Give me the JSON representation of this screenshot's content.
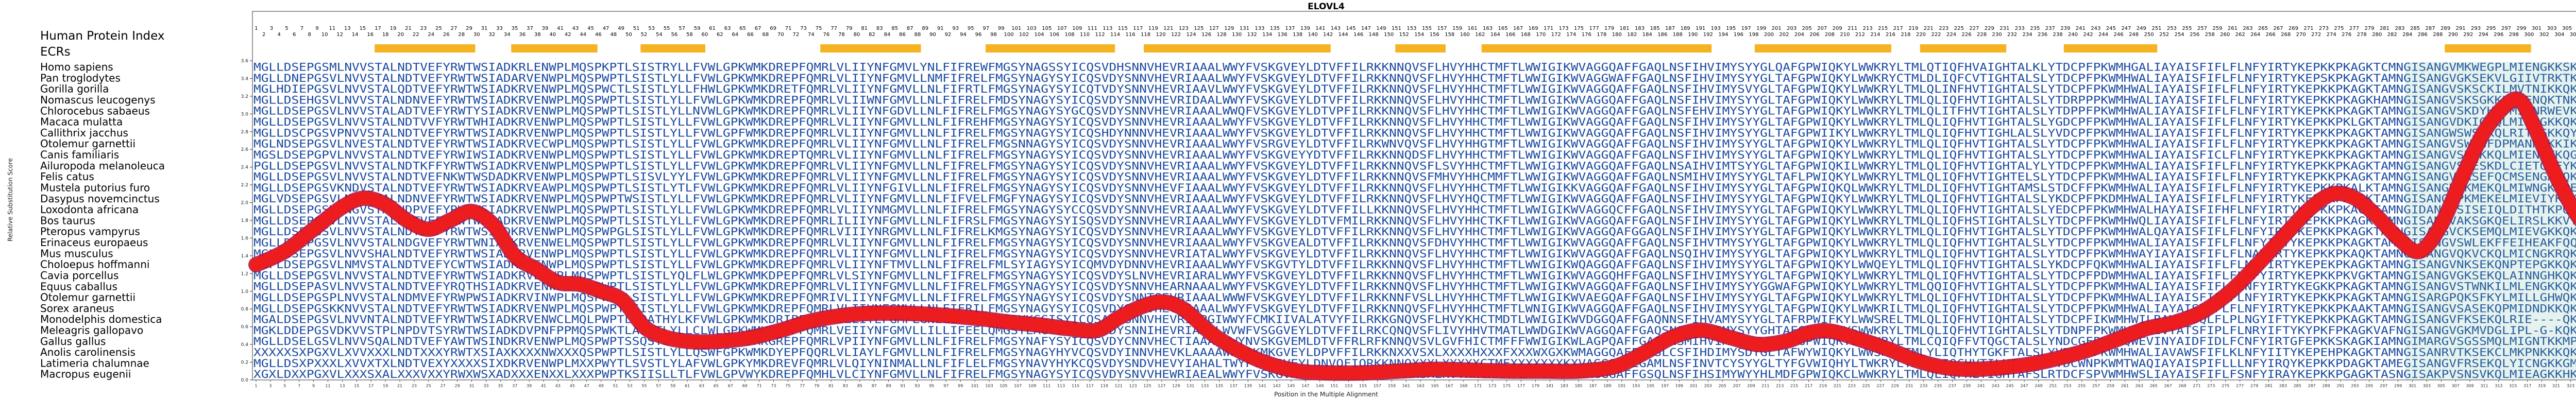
{
  "chart_data": {
    "type": "line",
    "title": "ELOVL4",
    "header_left": "Human Protein Index",
    "ecrs_label": "ECRs",
    "xlabel": "Position in the Multiple Alignment",
    "ylabel": "Relative Substitution Score",
    "ylim": [
      0,
      3.6
    ],
    "yticks": [
      0,
      0.2,
      0.4,
      0.6,
      0.8,
      1.0,
      1.2,
      1.4,
      1.6,
      1.8,
      2.0,
      2.2,
      2.4,
      2.6,
      2.8,
      3.0,
      3.2,
      3.4,
      3.6
    ],
    "human_index_max": 313,
    "alignment_length": 331,
    "species": [
      "Homo sapiens",
      "Pan troglodytes",
      "Gorilla gorilla",
      "Nomascus leucogenys",
      "Chlorocebus sabaeus",
      "Macaca mulatta",
      "Callithrix jacchus",
      "Otolemur garnettii",
      "Canis familiaris",
      "Ailuropoda melanoleuca",
      "Felis catus",
      "Mustela putorius furo",
      "Dasypus novemcinctus",
      "Loxodonta africana",
      "Bos taurus",
      "Pteropus vampyrus",
      "Erinaceus europaeus",
      "Mus musculus",
      "Choloepus hoffmanni",
      "Cavia porcellus",
      "Equus caballus",
      "Otolemur garnettii",
      "Sorex araneus",
      "Monodelphis domestica",
      "Meleagris gallopavo",
      "Gallus gallus",
      "Anolis carolinensis",
      "Latimeria chalumnae",
      "Macropus eugenii"
    ],
    "human_sequence": "MGLLDSEPGSVLNVVSTALNDTVEFYRWTWSIADKRVENWPLMQSPWPTLSISTLYLLFVWLGPKWMKDREPFQMRLVLIIYNFGMVLLNLFIFRELFMGSYNAGYSYICQSVDYSNNVHEVRIAAALWWYFVSKGVEYLDTVFFILRKKNNQVSFLHVYHHCTMFTLWWIGIKWVAGGQAFFGAQLNSFIHVIMYSYYGLTAFGPWIQKYLWWKRYLTMLQLIQFHVTIGHTALSLYTDCPFPKWMHWALIAYAISFIFLFLNFYIRTYKEPKKPKAGKTAMNGISANGVSKSEKQLMIENGKKQKNGKAKGD",
    "ecrs": [
      [
        18,
        31
      ],
      [
        37,
        48
      ],
      [
        55,
        63
      ],
      [
        80,
        93
      ],
      [
        103,
        120
      ],
      [
        125,
        150
      ],
      [
        160,
        166
      ],
      [
        172,
        203
      ],
      [
        210,
        228
      ],
      [
        233,
        244
      ],
      [
        253,
        265
      ],
      [
        306,
        317
      ]
    ],
    "points": [
      [
        1,
        1.3
      ],
      [
        5,
        1.45
      ],
      [
        9,
        1.7
      ],
      [
        13,
        1.95
      ],
      [
        16,
        2.05
      ],
      [
        19,
        1.98
      ],
      [
        22,
        1.8
      ],
      [
        25,
        1.7
      ],
      [
        28,
        1.8
      ],
      [
        31,
        1.9
      ],
      [
        34,
        1.75
      ],
      [
        37,
        1.4
      ],
      [
        40,
        1.25
      ],
      [
        43,
        1.1
      ],
      [
        46,
        1.08
      ],
      [
        49,
        1.0
      ],
      [
        52,
        0.9
      ],
      [
        55,
        0.6
      ],
      [
        58,
        0.48
      ],
      [
        62,
        0.43
      ],
      [
        66,
        0.44
      ],
      [
        70,
        0.48
      ],
      [
        74,
        0.56
      ],
      [
        78,
        0.66
      ],
      [
        82,
        0.72
      ],
      [
        86,
        0.75
      ],
      [
        92,
        0.75
      ],
      [
        98,
        0.72
      ],
      [
        102,
        0.69
      ],
      [
        106,
        0.65
      ],
      [
        110,
        0.62
      ],
      [
        114,
        0.58
      ],
      [
        118,
        0.56
      ],
      [
        121,
        0.7
      ],
      [
        124,
        0.82
      ],
      [
        127,
        0.88
      ],
      [
        130,
        0.8
      ],
      [
        134,
        0.52
      ],
      [
        138,
        0.32
      ],
      [
        142,
        0.18
      ],
      [
        146,
        0.1
      ],
      [
        150,
        0.08
      ],
      [
        155,
        0.08
      ],
      [
        160,
        0.1
      ],
      [
        165,
        0.12
      ],
      [
        170,
        0.11
      ],
      [
        175,
        0.1
      ],
      [
        180,
        0.1
      ],
      [
        185,
        0.1
      ],
      [
        190,
        0.15
      ],
      [
        194,
        0.3
      ],
      [
        198,
        0.48
      ],
      [
        202,
        0.56
      ],
      [
        206,
        0.48
      ],
      [
        210,
        0.4
      ],
      [
        214,
        0.44
      ],
      [
        217,
        0.53
      ],
      [
        220,
        0.55
      ],
      [
        224,
        0.46
      ],
      [
        228,
        0.35
      ],
      [
        232,
        0.22
      ],
      [
        236,
        0.14
      ],
      [
        240,
        0.12
      ],
      [
        244,
        0.14
      ],
      [
        248,
        0.18
      ],
      [
        252,
        0.25
      ],
      [
        256,
        0.34
      ],
      [
        260,
        0.46
      ],
      [
        264,
        0.58
      ],
      [
        268,
        0.65
      ],
      [
        272,
        0.78
      ],
      [
        276,
        1.02
      ],
      [
        280,
        1.35
      ],
      [
        284,
        1.7
      ],
      [
        287,
        1.95
      ],
      [
        290,
        2.1
      ],
      [
        293,
        2.05
      ],
      [
        296,
        1.85
      ],
      [
        299,
        1.6
      ],
      [
        302,
        1.45
      ],
      [
        305,
        1.75
      ],
      [
        308,
        2.3
      ],
      [
        311,
        2.8
      ],
      [
        314,
        3.1
      ],
      [
        316,
        3.15
      ],
      [
        318,
        2.85
      ],
      [
        321,
        2.3
      ],
      [
        324,
        1.85
      ],
      [
        327,
        1.6
      ],
      [
        331,
        1.5
      ]
    ],
    "colors": {
      "line": "#ef1c1c",
      "line_shadow": "#b40b3a",
      "ecr": "#f6b321",
      "residue": "#1b4ba0",
      "residue_conserved": "#0a2a80",
      "residue_variable": "#4e8e7b",
      "axis": "#333333"
    }
  }
}
